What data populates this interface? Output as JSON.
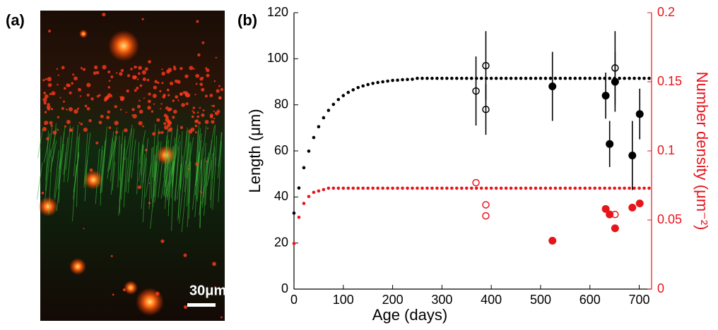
{
  "panel_a": {
    "label": "(a)",
    "scale_bar": "30μm"
  },
  "chart_data": {
    "type": "scatter",
    "panel_label": "(b)",
    "x_label": "Age (days)",
    "y_label": "Length (μm)",
    "y2_label": "Number density (μm⁻²)",
    "xlim": [
      0,
      725
    ],
    "xticks": [
      0,
      100,
      200,
      300,
      400,
      500,
      600,
      700
    ],
    "ylim": [
      0,
      120
    ],
    "yticks": [
      0,
      20,
      40,
      60,
      80,
      100,
      120
    ],
    "y2lim": [
      0,
      0.2
    ],
    "y2ticks": [
      0,
      0.05,
      0.1,
      0.15,
      0.2
    ],
    "y2_color": "#e8141c",
    "series": [
      {
        "color": "#000000",
        "marker": "dot",
        "axis": "y",
        "x": [
          0,
          10,
          20,
          30,
          40,
          50,
          60,
          70,
          80,
          90,
          100,
          110,
          120,
          130,
          140,
          150,
          160,
          170,
          180,
          190,
          200,
          210,
          220,
          230,
          240,
          250,
          260,
          270,
          280,
          290,
          300,
          310,
          320,
          330,
          340,
          350,
          360,
          370,
          380,
          390,
          400,
          410,
          420,
          430,
          440,
          450,
          460,
          470,
          480,
          490,
          500,
          510,
          520,
          530,
          540,
          550,
          560,
          570,
          580,
          590,
          600,
          610,
          620,
          630,
          640,
          650,
          660,
          670,
          680,
          690,
          700,
          710,
          720
        ],
        "values": [
          33,
          43.9,
          52.7,
          59.9,
          65.8,
          70.5,
          74.4,
          77.6,
          80.2,
          82.3,
          84,
          85.4,
          86.5,
          87.5,
          88.2,
          88.8,
          89.3,
          89.7,
          90,
          90.3,
          90.6,
          90.7,
          90.9,
          91,
          91.1,
          91.5,
          91.5,
          91.5,
          91.5,
          91.5,
          91.5,
          91.5,
          91.5,
          91.5,
          91.5,
          91.5,
          91.5,
          91.5,
          91.5,
          91.5,
          91.5,
          91.5,
          91.5,
          91.5,
          91.5,
          91.5,
          91.5,
          91.5,
          91.5,
          91.5,
          91.5,
          91.5,
          91.5,
          91.5,
          91.5,
          91.5,
          91.5,
          91.5,
          91.5,
          91.5,
          91.5,
          91.5,
          91.5,
          91.5,
          91.5,
          91.5,
          91.5,
          91.5,
          91.5,
          91.5,
          91.5,
          91.5,
          91.5
        ]
      },
      {
        "color": "#e8141c",
        "marker": "dot",
        "axis": "y2",
        "x": [
          0,
          10,
          20,
          30,
          40,
          50,
          60,
          70,
          80,
          90,
          100,
          110,
          120,
          130,
          140,
          150,
          160,
          170,
          180,
          190,
          200,
          210,
          220,
          230,
          240,
          250,
          260,
          270,
          280,
          290,
          300,
          310,
          320,
          330,
          340,
          350,
          360,
          370,
          380,
          390,
          400,
          410,
          420,
          430,
          440,
          450,
          460,
          470,
          480,
          490,
          500,
          510,
          520,
          530,
          540,
          550,
          560,
          570,
          580,
          590,
          600,
          610,
          620,
          630,
          640,
          650,
          660,
          670,
          680,
          690,
          700,
          710,
          720
        ],
        "values": [
          0.033,
          0.052,
          0.062,
          0.067,
          0.07,
          0.071,
          0.072,
          0.073,
          0.073,
          0.073,
          0.073,
          0.073,
          0.073,
          0.073,
          0.073,
          0.073,
          0.073,
          0.073,
          0.073,
          0.073,
          0.073,
          0.073,
          0.073,
          0.073,
          0.073,
          0.073,
          0.073,
          0.073,
          0.073,
          0.073,
          0.073,
          0.073,
          0.073,
          0.073,
          0.073,
          0.073,
          0.073,
          0.073,
          0.073,
          0.073,
          0.073,
          0.073,
          0.073,
          0.073,
          0.073,
          0.073,
          0.073,
          0.073,
          0.073,
          0.073,
          0.073,
          0.073,
          0.073,
          0.073,
          0.073,
          0.073,
          0.073,
          0.073,
          0.073,
          0.073,
          0.073,
          0.073,
          0.073,
          0.073,
          0.073,
          0.073,
          0.073,
          0.073,
          0.073,
          0.073,
          0.073,
          0.073,
          0.073
        ]
      },
      {
        "color": "#000000",
        "marker": "open",
        "axis": "y",
        "x": [
          369,
          389,
          389,
          651
        ],
        "values": [
          86,
          97,
          78,
          96
        ],
        "errors": [
          15,
          15,
          11,
          16
        ]
      },
      {
        "color": "#000000",
        "marker": "filled",
        "axis": "y",
        "x": [
          524,
          632,
          640,
          651,
          686,
          701
        ],
        "values": [
          88,
          84,
          63,
          90,
          58,
          76
        ],
        "errors": [
          15,
          10,
          10,
          13,
          15,
          11
        ]
      },
      {
        "color": "#e8141c",
        "marker": "open",
        "axis": "y2",
        "x": [
          369,
          389,
          389,
          651
        ],
        "values": [
          0.077,
          0.061,
          0.053,
          0.054
        ]
      },
      {
        "color": "#e8141c",
        "marker": "filled",
        "axis": "y2",
        "x": [
          524,
          632,
          640,
          651,
          686,
          701
        ],
        "values": [
          0.035,
          0.058,
          0.054,
          0.044,
          0.059,
          0.062
        ]
      }
    ]
  }
}
